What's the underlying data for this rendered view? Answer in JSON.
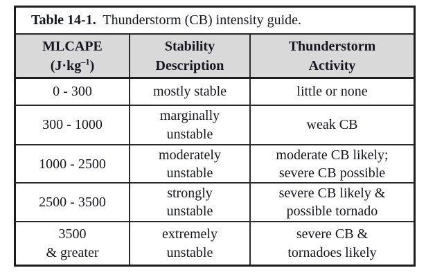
{
  "table": {
    "caption": {
      "number": "Table 14-1.",
      "text": "  Thunderstorm (CB) intensity guide."
    },
    "columns": {
      "mlcape": {
        "line1": "MLCAPE",
        "unit_prefix": "(J·kg",
        "unit_sup": "–1",
        "unit_suffix": ")"
      },
      "stability": {
        "label": "Stability\nDescription"
      },
      "activity": {
        "label": "Thunderstorm\nActivity"
      }
    },
    "rows": [
      {
        "mlcape": "0 - 300",
        "stability": "mostly stable",
        "activity": "little or none"
      },
      {
        "mlcape": "300 - 1000",
        "stability": "marginally\nunstable",
        "activity": "weak CB"
      },
      {
        "mlcape": "1000 - 2500",
        "stability": "moderately\nunstable",
        "activity": "moderate CB likely;\nsevere CB possible"
      },
      {
        "mlcape": "2500 - 3500",
        "stability": "strongly\nunstable",
        "activity": "severe CB likely &\npossible tornado"
      },
      {
        "mlcape": "3500\n& greater",
        "stability": "extremely\nunstable",
        "activity": "severe CB &\ntornadoes likely"
      }
    ],
    "colors": {
      "header_bg": "#d9d9d9",
      "border": "#1c1c1c",
      "text": "#15151f",
      "page_bg": "#ffffff"
    }
  }
}
